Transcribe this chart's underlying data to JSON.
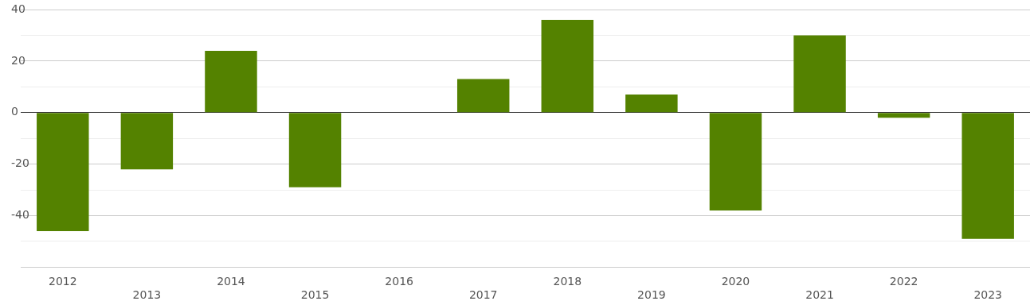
{
  "chart_data": {
    "type": "bar",
    "categories": [
      "2012",
      "2013",
      "2014",
      "2015",
      "2016",
      "2017",
      "2018",
      "2019",
      "2020",
      "2021",
      "2022",
      "2023"
    ],
    "values": [
      -46,
      -22,
      24,
      -29,
      0,
      13,
      36,
      7,
      -38,
      30,
      -2,
      -49
    ],
    "color": "#548200",
    "ylim": [
      -60,
      40
    ],
    "yticks": [
      {
        "value": -60,
        "label": null
      },
      {
        "value": -50,
        "label": null
      },
      -40,
      {
        "value": -30,
        "label": null
      },
      -20,
      {
        "value": -10,
        "label": null
      },
      0,
      {
        "value": 10,
        "label": null
      },
      20,
      {
        "value": 30,
        "label": null
      },
      40
    ],
    "grid": "y",
    "legend": false
  }
}
